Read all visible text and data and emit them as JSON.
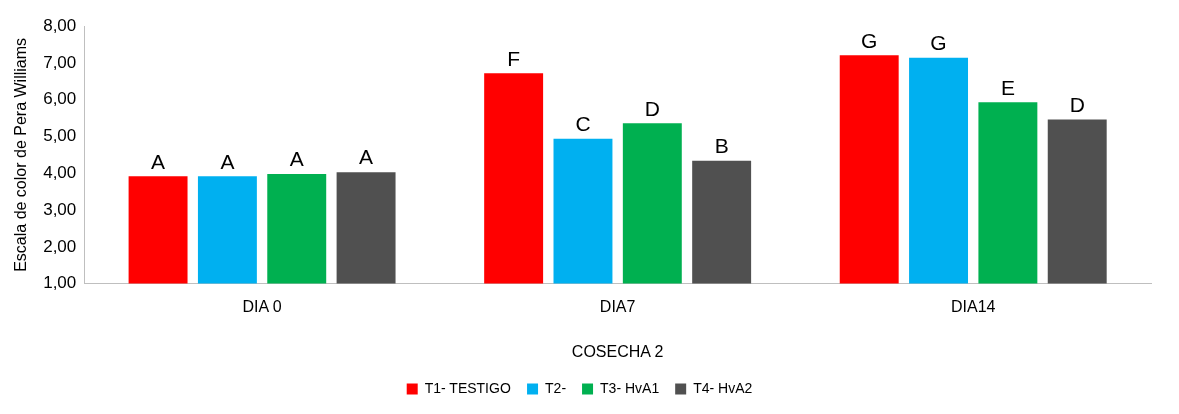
{
  "chart_data": {
    "type": "bar",
    "xlabel": "COSECHA 2",
    "ylabel": "Escala de color de Pera Williams",
    "categories": [
      "DIA 0",
      "DIA7",
      "DIA14"
    ],
    "series": [
      {
        "name": "T1- TESTIGO",
        "color": "#ff0000",
        "values": [
          3.92,
          6.72,
          7.21
        ],
        "value_labels": [
          "A",
          "F",
          "G"
        ]
      },
      {
        "name": "T2-",
        "color": "#00b0f0",
        "values": [
          3.92,
          4.94,
          7.14
        ],
        "value_labels": [
          "A",
          "C",
          "G"
        ]
      },
      {
        "name": "T3- HvA1",
        "color": "#00b050",
        "values": [
          3.98,
          5.36,
          5.93
        ],
        "value_labels": [
          "A",
          "D",
          "E"
        ]
      },
      {
        "name": "T4- HvA2",
        "color": "#505050",
        "values": [
          4.03,
          4.34,
          5.46
        ],
        "value_labels": [
          "A",
          "B",
          "D"
        ]
      }
    ],
    "ylim": [
      1,
      8
    ],
    "yticks": [
      {
        "value": 1,
        "label": "1,00"
      },
      {
        "value": 2,
        "label": "2,00"
      },
      {
        "value": 3,
        "label": "3,00"
      },
      {
        "value": 4,
        "label": "4,00"
      },
      {
        "value": 5,
        "label": "5,00"
      },
      {
        "value": 6,
        "label": "6,00"
      },
      {
        "value": 7,
        "label": "7,00"
      },
      {
        "value": 8,
        "label": "8,00"
      }
    ],
    "grid": false,
    "legend": "bottom"
  }
}
